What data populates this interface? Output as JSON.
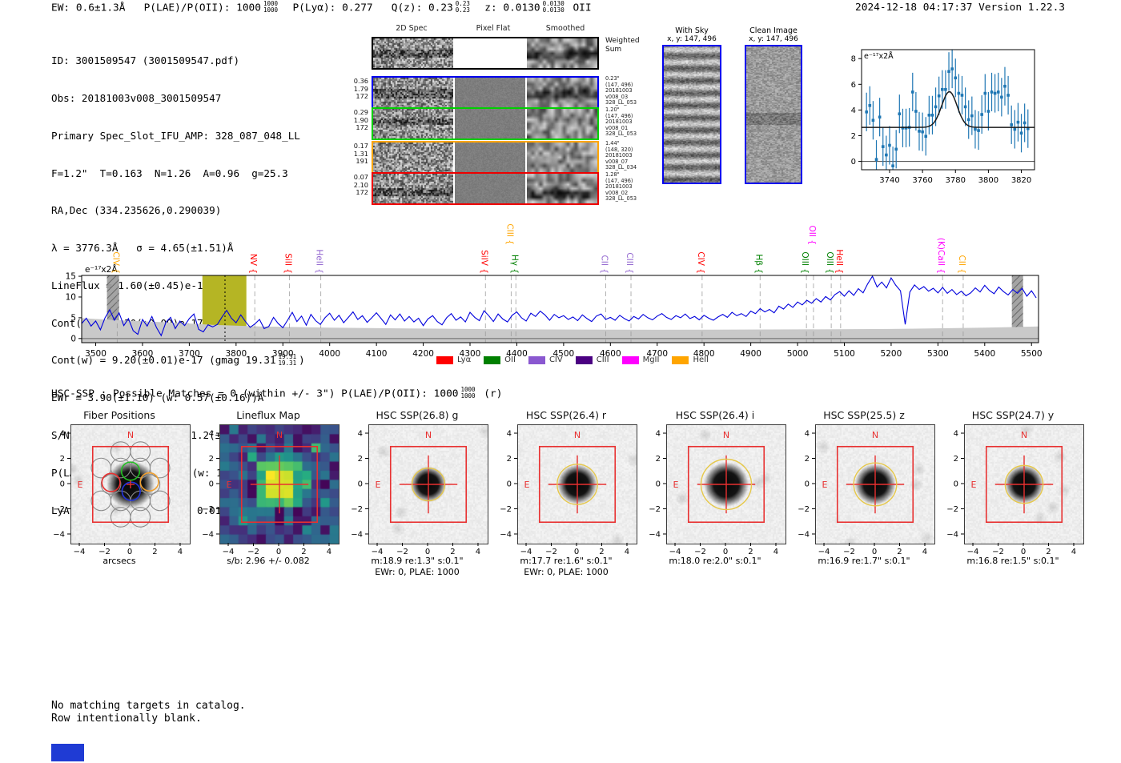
{
  "header": {
    "left": {
      "s1": "EW: 0.6±1.3Å",
      "s2": "P(LAE)/P(OII): 1000",
      "f1t": "1000",
      "f1b": "1000",
      "s3": "P(Lyα): 0.277",
      "s4": "Q(z): 0.23",
      "f2t": "0.23",
      "f2b": "0.23",
      "s5": "z: 0.0130",
      "f3t": "0.0130",
      "f3b": "0.0130",
      "s6": "OII"
    },
    "right": "2024-12-18 04:17:37  Version 1.22.3"
  },
  "info": {
    "lines": [
      "ID: 3001509547 (3001509547.pdf)",
      "Obs: 20181003v008_3001509547",
      "Primary Spec_Slot_IFU_AMP: 328_087_048_LL",
      "F=1.2\"  T=0.163  N=1.26  A=0.96  g=25.3",
      "RA,Dec (334.235626,0.290039)",
      "λ = 3776.3Å   σ = 4.65(±1.51)Å",
      "LineFlux = 1.60(±0.45)e-16",
      "Cont(n) = 1.30(±0.09)e-17",
      "EWr = 3.90(±1.10) (w: 0.57(±0.16))Å",
      "S/N = 5.6(±0.5)   χ² = 1.2(±0.2)",
      "LyA z = 2.1064  OII z = 0.0130"
    ],
    "contw": {
      "pre": "Cont(w) = 9.20(±0.01)e-17 (gmag 19.31",
      "ft": "19.31",
      "fb": "19.31",
      "post": ")"
    },
    "plae": {
      "pre": "P(LAE)/P(OII): 1000",
      "f1t": "1000",
      "f1b": "1000",
      "mid": "(w: 1000",
      "f2t": "1000",
      "f2b": "1000",
      "post": ")"
    }
  },
  "spec2d": {
    "col_titles": [
      "2D Spec",
      "Pixel Flat",
      "Smoothed"
    ],
    "rows": [
      {
        "border": "#000000",
        "left": [
          "",
          "",
          ""
        ],
        "right": [
          "Weighted",
          "Sum",
          "",
          "",
          ""
        ]
      },
      {
        "border": "#0000ee",
        "left": [
          "0.36",
          "1.79",
          "172"
        ],
        "right": [
          "0.23\"",
          "(147, 496)",
          "20181003",
          "v008_03",
          "328_LL_053"
        ]
      },
      {
        "border": "#00d000",
        "left": [
          "0.29",
          "1.90",
          "172"
        ],
        "right": [
          "1.20\"",
          "(147, 496)",
          "20181003",
          "v008_01",
          "328_LL_053"
        ]
      },
      {
        "border": "#ffa500",
        "left": [
          "0.17",
          "1.31",
          "191"
        ],
        "right": [
          "1.44\"",
          "(148, 320)",
          "20181003",
          "v008_07",
          "328_LL_034"
        ]
      },
      {
        "border": "#ee0000",
        "left": [
          "0.07",
          "2.10",
          "172"
        ],
        "right": [
          "1.28\"",
          "(147, 496)",
          "20181003",
          "v008_02",
          "328_LL_053"
        ]
      }
    ]
  },
  "sky_panels": [
    {
      "title": "With Sky",
      "subtitle": "x, y: 147, 496"
    },
    {
      "title": "Clean Image",
      "subtitle": "x, y: 147, 496"
    }
  ],
  "hsc_line": {
    "pre": "HSC-SSP : Possible Matches = 0 (within +/- 3\")  P(LAE)/P(OII): 1000",
    "ft": "1000",
    "fb": "1000",
    "post": "(r)"
  },
  "catalog_note": {
    "line1": "No matching targets in catalog.",
    "line2": "Row intentionally blank."
  },
  "chart_data": [
    {
      "type": "scatter",
      "title": "line fit zoom",
      "ylabel": "e⁻¹⁷x2Å",
      "xticks": [
        3740,
        3760,
        3780,
        3800,
        3820
      ],
      "yticks": [
        0,
        2,
        4,
        6,
        8
      ],
      "xlim": [
        3723,
        3828
      ],
      "ylim": [
        -0.65,
        8.7
      ],
      "marker_color": "#1f77b4",
      "fit_color": "#1a1a1a",
      "yerr": 1.5,
      "fit": {
        "baseline": 2.65,
        "amplitude": 2.78,
        "center": 3776.3,
        "sigma": 4.65
      },
      "x_start": 3726,
      "x_step": 2,
      "y": [
        3.85,
        4.35,
        3.2,
        0.15,
        3.45,
        1.15,
        0.5,
        1.25,
        -0.35,
        0.95,
        3.7,
        2.6,
        2.6,
        2.65,
        5.4,
        3.9,
        2.35,
        2.3,
        1.95,
        3.6,
        3.6,
        4.25,
        5.1,
        5.6,
        5.6,
        7.0,
        7.2,
        6.5,
        5.3,
        5.15,
        4.25,
        3.25,
        3.55,
        2.5,
        2.4,
        3.65,
        5.3,
        3.9,
        5.4,
        5.3,
        5.4,
        5.0,
        5.85,
        5.15,
        2.85,
        2.5,
        3.05,
        2.2,
        3.0,
        2.55
      ]
    },
    {
      "type": "line",
      "title": "full spectrum",
      "ylabel": "e⁻¹⁷x2Å",
      "xticks": [
        3500,
        3600,
        3700,
        3800,
        3900,
        4000,
        4100,
        4200,
        4300,
        4400,
        4500,
        4600,
        4700,
        4800,
        4900,
        5000,
        5100,
        5200,
        5300,
        5400,
        5500
      ],
      "yticks": [
        0,
        5,
        10,
        15
      ],
      "xlim": [
        3470,
        5515
      ],
      "ylim": [
        -1.0,
        15.2
      ],
      "grid": false,
      "line_color": "#0000dd",
      "noise_color": "#c9c9c9",
      "band_color": "#b5b524",
      "detection_line": 3776.3,
      "detection_band": [
        3728,
        3822
      ],
      "hatch_bands": [
        [
          3524,
          3550
        ],
        [
          5458,
          5482
        ]
      ],
      "legend": [
        {
          "label": "Lyα",
          "color": "#ff0000"
        },
        {
          "label": "OII",
          "color": "#008000"
        },
        {
          "label": "CIV",
          "color": "#8a58d0"
        },
        {
          "label": "CIII",
          "color": "#4b0082"
        },
        {
          "label": "MgII",
          "color": "#ff00ff"
        },
        {
          "label": "HeII",
          "color": "#ffa500"
        }
      ],
      "markers": [
        {
          "name": "CIV",
          "color": "#ffa500",
          "wave": 3546,
          "row": 0
        },
        {
          "name": "NV",
          "color": "#ff0000",
          "wave": 3840,
          "row": 0
        },
        {
          "name": "SiII",
          "color": "#ff0000",
          "wave": 3914,
          "row": 0
        },
        {
          "name": "HeII",
          "color": "#9164cf",
          "wave": 3981,
          "row": 0
        },
        {
          "name": "SiIV",
          "color": "#ff0000",
          "wave": 4333,
          "row": 0
        },
        {
          "name": "CIII",
          "color": "#ffa500",
          "wave": 4388,
          "row": 1
        },
        {
          "name": "Hγ",
          "color": "#008000",
          "wave": 4398,
          "row": 0
        },
        {
          "name": "CII",
          "color": "#9164cf",
          "wave": 4590,
          "row": 0
        },
        {
          "name": "CIII",
          "color": "#9164cf",
          "wave": 4644,
          "row": 0
        },
        {
          "name": "CIV",
          "color": "#ff0000",
          "wave": 4796,
          "row": 0
        },
        {
          "name": "Hβ",
          "color": "#008000",
          "wave": 4920,
          "row": 0
        },
        {
          "name": "OIII",
          "color": "#008000",
          "wave": 5019,
          "row": 0
        },
        {
          "name": "OII",
          "color": "#ff00ff",
          "wave": 5034,
          "row": 1
        },
        {
          "name": "OIII",
          "color": "#008000",
          "wave": 5072,
          "row": 0
        },
        {
          "name": "HeII",
          "color": "#ff0000",
          "wave": 5092,
          "row": 0
        },
        {
          "name": "(K)CaII",
          "color": "#ff00ff",
          "wave": 5310,
          "row": 0
        },
        {
          "name": "CII",
          "color": "#ffa500",
          "wave": 5354,
          "row": 0
        }
      ],
      "spectrum": {
        "wave_start": 3470,
        "wave_step": 10,
        "flux": [
          3.6,
          4.9,
          3.0,
          4.2,
          2.1,
          5.0,
          6.9,
          4.4,
          6.2,
          3.1,
          4.8,
          1.9,
          1.0,
          4.6,
          3.0,
          5.3,
          2.6,
          0.7,
          3.9,
          5.1,
          2.4,
          4.2,
          3.1,
          4.8,
          5.9,
          2.2,
          1.6,
          3.3,
          2.8,
          3.4,
          5.2,
          6.8,
          4.9,
          3.8,
          5.7,
          4.1,
          2.7,
          3.5,
          4.6,
          2.4,
          2.9,
          5.1,
          3.6,
          2.6,
          4.4,
          6.3,
          4.1,
          5.4,
          3.2,
          5.8,
          4.3,
          3.4,
          5.0,
          6.1,
          4.4,
          5.6,
          3.8,
          5.1,
          6.4,
          4.6,
          5.5,
          3.9,
          5.0,
          6.2,
          4.8,
          3.4,
          5.7,
          4.5,
          5.9,
          4.2,
          5.3,
          4.0,
          4.9,
          3.1,
          4.7,
          5.5,
          4.1,
          3.3,
          5.0,
          6.0,
          4.4,
          5.2,
          4.0,
          6.3,
          5.1,
          4.3,
          6.7,
          5.5,
          4.1,
          5.9,
          4.7,
          4.0,
          5.6,
          6.4,
          5.0,
          4.2,
          6.1,
          5.3,
          6.6,
          5.7,
          4.4,
          5.8,
          5.0,
          5.5,
          4.6,
          5.2,
          4.3,
          5.7,
          4.8,
          4.1,
          5.4,
          5.9,
          4.6,
          5.1,
          4.4,
          5.6,
          4.8,
          4.2,
          5.3,
          4.7,
          5.8,
          5.0,
          4.5,
          5.4,
          6.0,
          5.1,
          4.6,
          5.5,
          5.0,
          5.9,
          4.8,
          5.3,
          4.5,
          5.6,
          4.9,
          4.4,
          5.2,
          5.8,
          5.1,
          6.3,
          5.5,
          6.0,
          5.3,
          6.6,
          6.0,
          7.2,
          6.4,
          7.0,
          6.2,
          7.8,
          7.1,
          8.3,
          7.5,
          8.8,
          8.1,
          9.2,
          8.5,
          9.6,
          8.8,
          10.1,
          9.3,
          10.6,
          11.3,
          10.2,
          11.5,
          10.4,
          12.0,
          11.0,
          13.2,
          15.0,
          12.4,
          13.6,
          12.2,
          14.6,
          12.8,
          11.5,
          3.4,
          11.2,
          12.9,
          11.8,
          12.5,
          11.4,
          12.1,
          11.0,
          12.3,
          10.9,
          11.8,
          10.6,
          11.4,
          10.3,
          11.0,
          12.2,
          11.2,
          12.8,
          11.6,
          10.8,
          12.4,
          11.3,
          10.5,
          11.8,
          10.9,
          12.1,
          10.2,
          11.5,
          9.8
        ]
      },
      "noise_band": {
        "wave": [
          3470,
          3550,
          3650,
          3750,
          3850,
          4000,
          4200,
          4400,
          4700,
          5000,
          5200,
          5400,
          5515
        ],
        "flux": [
          4.9,
          4.4,
          3.9,
          3.3,
          2.9,
          2.6,
          2.4,
          2.2,
          2.1,
          2.2,
          2.3,
          2.6,
          2.9
        ]
      }
    }
  ],
  "cutouts": {
    "ticks": [
      -4,
      -2,
      0,
      2,
      4
    ],
    "n_label": "N",
    "e_label": "E",
    "fiber": {
      "title": "Fiber Positions",
      "cap1": "arcsecs",
      "cap2": ""
    },
    "lineflux": {
      "title": "Lineflux Map",
      "cap1": "s/b: 2.96 +/- 0.082",
      "cap2": ""
    },
    "hsc": [
      {
        "title": "HSC SSP(26.8) g",
        "cap1": "m:18.9  re:1.3\"  s:0.1\"",
        "cap2": "EWr: 0, PLAE: 1000",
        "r": 1.3
      },
      {
        "title": "HSC SSP(26.4) r",
        "cap1": "m:17.7  re:1.6\"  s:0.1\"",
        "cap2": "EWr: 0, PLAE: 1000",
        "r": 1.6
      },
      {
        "title": "HSC SSP(26.4) i",
        "cap1": "m:18.0  re:2.0\"  s:0.1\"",
        "cap2": "",
        "r": 2.0
      },
      {
        "title": "HSC SSP(25.5) z",
        "cap1": "m:16.9  re:1.7\"  s:0.1\"",
        "cap2": "",
        "r": 1.7
      },
      {
        "title": "HSC SSP(24.7) y",
        "cap1": "m:16.8  re:1.5\"  s:0.1\"",
        "cap2": "",
        "r": 1.5
      }
    ],
    "accent_red": "#e83030",
    "accent_yellow": "#e6c84a"
  }
}
